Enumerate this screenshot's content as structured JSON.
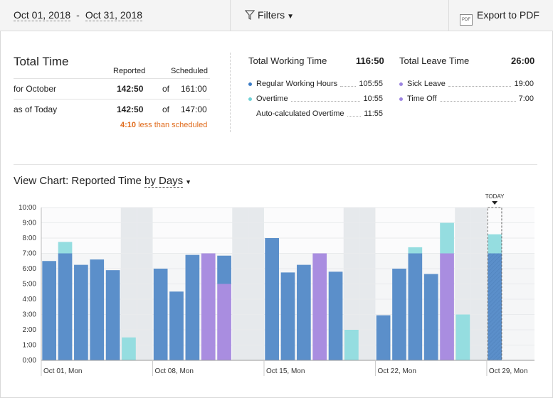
{
  "toolbar": {
    "date_start": "Oct 01, 2018",
    "date_separator": "-",
    "date_end": "Oct 31, 2018",
    "filters_label": "Filters",
    "export_label": "Export to PDF",
    "export_icon": "pdf-icon"
  },
  "total_time": {
    "title": "Total Time",
    "col_reported": "Reported",
    "col_scheduled": "Scheduled",
    "rows": [
      {
        "label": "for October",
        "reported": "142:50",
        "of": "of",
        "scheduled": "161:00"
      },
      {
        "label": "as of Today",
        "reported": "142:50",
        "of": "of",
        "scheduled": "147:00"
      }
    ],
    "warning_value": "4:10",
    "warning_text": "less than scheduled"
  },
  "working_time": {
    "title": "Total Working Time",
    "total": "116:50",
    "items": [
      {
        "label": "Regular Working Hours",
        "value": "105:55",
        "color": "#3c7cc5"
      },
      {
        "label": "Overtime",
        "value": "10:55",
        "color": "#6fd1d6"
      },
      {
        "label": "Auto-calculated Overtime",
        "value": "11:55",
        "color": ""
      }
    ]
  },
  "leave_time": {
    "title": "Total Leave Time",
    "total": "26:00",
    "items": [
      {
        "label": "Sick Leave",
        "value": "19:00",
        "color": "#9c84e0"
      },
      {
        "label": "Time Off",
        "value": "7:00",
        "color": "#9c84e0"
      }
    ]
  },
  "view_chart": {
    "prefix": "View Chart: Reported Time",
    "by_label": "by Days"
  },
  "chart_data": {
    "type": "bar",
    "stacked": true,
    "ylim": [
      0,
      10
    ],
    "yticks": [
      "0:00",
      "1:00",
      "2:00",
      "3:00",
      "4:00",
      "5:00",
      "6:00",
      "7:00",
      "8:00",
      "9:00",
      "10:00"
    ],
    "x_labels": [
      "Oct 01, Mon",
      "Oct 08, Mon",
      "Oct 15, Mon",
      "Oct 22, Mon",
      "Oct 29, Mon"
    ],
    "today_label": "TODAY",
    "today_index": 28,
    "colors": {
      "regular": "#5b8fca",
      "overtime": "#95dde0",
      "leave": "#a98de0",
      "weekend": "#e6e9ec",
      "plot_bg": "#f5f6f7"
    },
    "days": [
      {
        "regular": 6.5,
        "overtime": 0,
        "leave": 0
      },
      {
        "regular": 7,
        "overtime": 0.75,
        "leave": 0
      },
      {
        "regular": 6.25,
        "overtime": 0,
        "leave": 0
      },
      {
        "regular": 6.6,
        "overtime": 0,
        "leave": 0
      },
      {
        "regular": 5.9,
        "overtime": 0,
        "leave": 0
      },
      {
        "regular": 0,
        "overtime": 1.5,
        "leave": 0,
        "weekend": true
      },
      {
        "regular": 0,
        "overtime": 0,
        "leave": 0,
        "weekend": true
      },
      {
        "regular": 6,
        "overtime": 0,
        "leave": 0
      },
      {
        "regular": 4.5,
        "overtime": 0,
        "leave": 0
      },
      {
        "regular": 6.9,
        "overtime": 0,
        "leave": 0
      },
      {
        "regular": 0,
        "overtime": 0,
        "leave": 7
      },
      {
        "regular": 6.85,
        "overtime": 0,
        "leave": 0,
        "leave_below": 5
      },
      {
        "regular": 0,
        "overtime": 0,
        "leave": 0,
        "weekend": true
      },
      {
        "regular": 0,
        "overtime": 0,
        "leave": 0,
        "weekend": true
      },
      {
        "regular": 8,
        "overtime": 0,
        "leave": 0
      },
      {
        "regular": 5.75,
        "overtime": 0,
        "leave": 0
      },
      {
        "regular": 6.25,
        "overtime": 0,
        "leave": 0
      },
      {
        "regular": 0,
        "overtime": 0,
        "leave": 7
      },
      {
        "regular": 5.8,
        "overtime": 0,
        "leave": 0
      },
      {
        "regular": 0,
        "overtime": 2,
        "leave": 0,
        "weekend": true
      },
      {
        "regular": 0,
        "overtime": 0,
        "leave": 0,
        "weekend": true
      },
      {
        "regular": 2.95,
        "overtime": 0,
        "leave": 0
      },
      {
        "regular": 6,
        "overtime": 0,
        "leave": 0
      },
      {
        "regular": 7,
        "overtime": 0.4,
        "leave": 0
      },
      {
        "regular": 5.65,
        "overtime": 0,
        "leave": 0
      },
      {
        "regular": 0,
        "overtime": 2,
        "leave": 7
      },
      {
        "regular": 0,
        "overtime": 3,
        "leave": 0,
        "weekend": true
      },
      {
        "regular": 0,
        "overtime": 0,
        "leave": 0,
        "weekend": true
      },
      {
        "regular": 7,
        "overtime": 1.25,
        "leave": 0,
        "today": true
      },
      {
        "regular": 0,
        "overtime": 0,
        "leave": 0
      },
      {
        "regular": 0,
        "overtime": 0,
        "leave": 0
      }
    ]
  }
}
